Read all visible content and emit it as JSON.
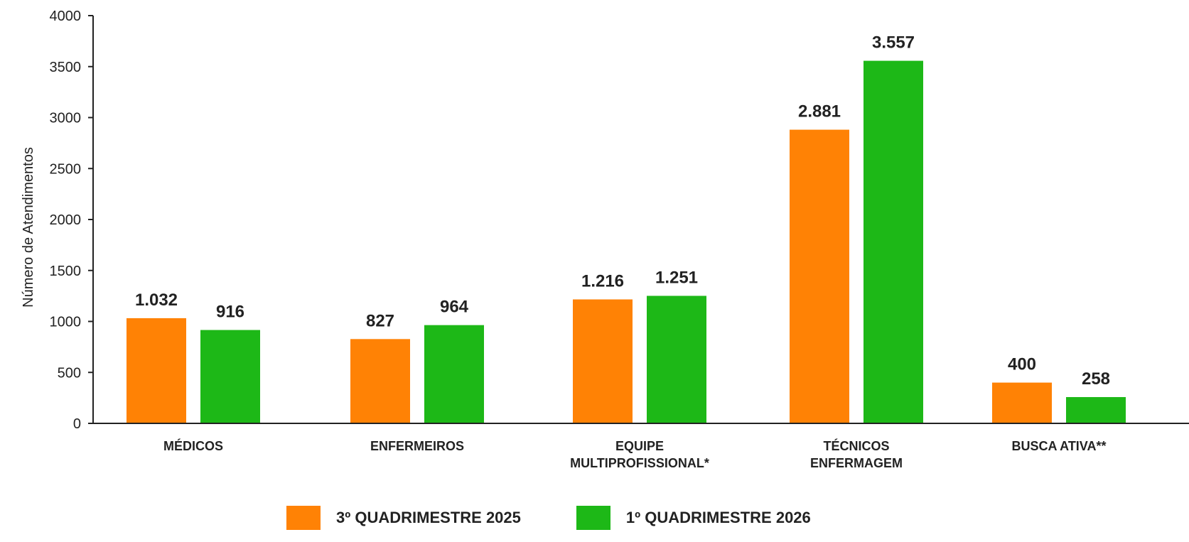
{
  "chart_data": {
    "type": "bar",
    "title": "",
    "xlabel": "",
    "ylabel": "Número de Atendimentos",
    "ylim": [
      0,
      4000
    ],
    "yticks": [
      0,
      500,
      1000,
      1500,
      2000,
      2500,
      3000,
      3500,
      4000
    ],
    "grid": false,
    "legend_position": "bottom",
    "categories": [
      [
        "MÉDICOS"
      ],
      [
        "ENFERMEIROS"
      ],
      [
        "EQUIPE",
        "MULTIPROFISSIONAL*"
      ],
      [
        "TÉCNICOS",
        "ENFERMAGEM"
      ],
      [
        "BUSCA ATIVA**"
      ]
    ],
    "series": [
      {
        "name": "3º QUADRIMESTRE 2025",
        "color": "#ff8205",
        "values": [
          1032,
          827,
          1216,
          2881,
          400
        ],
        "labels": [
          "1.032",
          "827",
          "1.216",
          "2.881",
          "400"
        ]
      },
      {
        "name": "1º QUADRIMESTRE 2026",
        "color": "#1db817",
        "values": [
          916,
          964,
          1251,
          3557,
          258
        ],
        "labels": [
          "916",
          "964",
          "1.251",
          "3.557",
          "258"
        ]
      }
    ]
  }
}
